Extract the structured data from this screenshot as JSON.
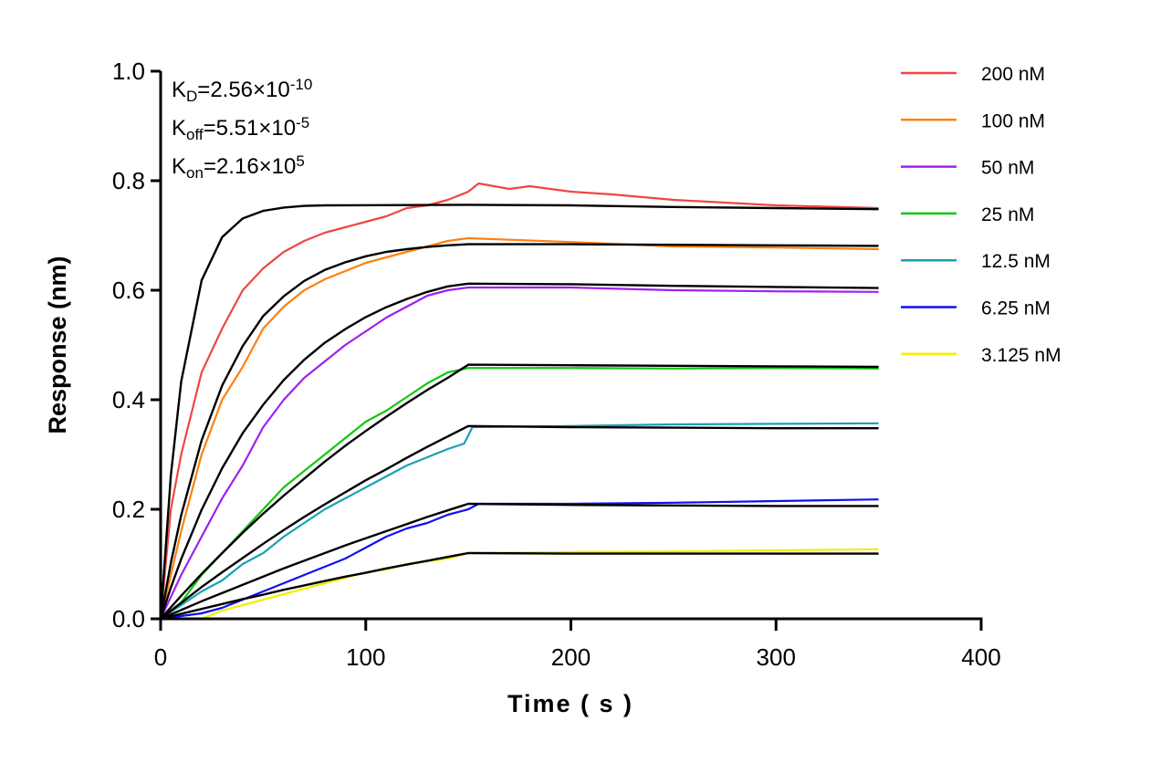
{
  "chart_data": {
    "type": "line",
    "title": "",
    "xlabel": "Time ( s )",
    "ylabel": "Response (nm)",
    "xlim": [
      0,
      400
    ],
    "ylim": [
      0,
      1.0
    ],
    "xticks": [
      0,
      100,
      200,
      300,
      400
    ],
    "yticks": [
      0.0,
      0.2,
      0.4,
      0.6,
      0.8,
      1.0
    ],
    "xtick_labels": [
      "0",
      "100",
      "200",
      "300",
      "400"
    ],
    "ytick_labels": [
      "0.0",
      "0.2",
      "0.4",
      "0.6",
      "0.8",
      "1.0"
    ],
    "grid": false,
    "legend_position": "top-right",
    "fit_color": "#000000",
    "annotations": [
      {
        "sym": "K",
        "sub": "D",
        "text": "=2.56×10",
        "sup": "-10"
      },
      {
        "sym": "K",
        "sub": "off",
        "text": "=5.51×10",
        "sup": "-5"
      },
      {
        "sym": "K",
        "sub": "on",
        "text": "=2.16×10",
        "sup": "5"
      }
    ],
    "series": [
      {
        "name": "200 nM",
        "color": "#f04545",
        "data": [
          [
            0,
            0
          ],
          [
            5,
            0.2
          ],
          [
            10,
            0.3
          ],
          [
            20,
            0.45
          ],
          [
            30,
            0.53
          ],
          [
            40,
            0.6
          ],
          [
            50,
            0.64
          ],
          [
            60,
            0.67
          ],
          [
            70,
            0.69
          ],
          [
            80,
            0.705
          ],
          [
            90,
            0.715
          ],
          [
            100,
            0.725
          ],
          [
            110,
            0.735
          ],
          [
            120,
            0.75
          ],
          [
            130,
            0.755
          ],
          [
            140,
            0.765
          ],
          [
            150,
            0.78
          ],
          [
            155,
            0.795
          ],
          [
            170,
            0.785
          ],
          [
            180,
            0.79
          ],
          [
            200,
            0.78
          ],
          [
            220,
            0.775
          ],
          [
            250,
            0.765
          ],
          [
            300,
            0.755
          ],
          [
            350,
            0.75
          ]
        ],
        "fit": [
          [
            0,
            0
          ],
          [
            5,
            0.262
          ],
          [
            10,
            0.433
          ],
          [
            20,
            0.618
          ],
          [
            30,
            0.697
          ],
          [
            40,
            0.731
          ],
          [
            50,
            0.745
          ],
          [
            60,
            0.751
          ],
          [
            70,
            0.754
          ],
          [
            80,
            0.755
          ],
          [
            150,
            0.756
          ],
          [
            200,
            0.755
          ],
          [
            250,
            0.752
          ],
          [
            300,
            0.75
          ],
          [
            350,
            0.748
          ]
        ]
      },
      {
        "name": "100 nM",
        "color": "#ff8010",
        "data": [
          [
            0,
            0
          ],
          [
            5,
            0.08
          ],
          [
            10,
            0.16
          ],
          [
            20,
            0.3
          ],
          [
            30,
            0.4
          ],
          [
            40,
            0.46
          ],
          [
            50,
            0.53
          ],
          [
            60,
            0.57
          ],
          [
            70,
            0.6
          ],
          [
            80,
            0.62
          ],
          [
            90,
            0.635
          ],
          [
            100,
            0.65
          ],
          [
            110,
            0.66
          ],
          [
            120,
            0.67
          ],
          [
            130,
            0.68
          ],
          [
            140,
            0.69
          ],
          [
            150,
            0.695
          ],
          [
            200,
            0.688
          ],
          [
            250,
            0.68
          ],
          [
            300,
            0.678
          ],
          [
            350,
            0.675
          ]
        ],
        "fit": [
          [
            0,
            0
          ],
          [
            5,
            0.102
          ],
          [
            10,
            0.189
          ],
          [
            20,
            0.326
          ],
          [
            30,
            0.426
          ],
          [
            40,
            0.498
          ],
          [
            50,
            0.553
          ],
          [
            60,
            0.589
          ],
          [
            70,
            0.617
          ],
          [
            80,
            0.637
          ],
          [
            90,
            0.651
          ],
          [
            100,
            0.662
          ],
          [
            110,
            0.67
          ],
          [
            120,
            0.675
          ],
          [
            130,
            0.679
          ],
          [
            140,
            0.682
          ],
          [
            150,
            0.684
          ],
          [
            200,
            0.684
          ],
          [
            250,
            0.683
          ],
          [
            300,
            0.682
          ],
          [
            350,
            0.681
          ]
        ]
      },
      {
        "name": "50 nM",
        "color": "#a020f0",
        "data": [
          [
            0,
            0
          ],
          [
            10,
            0.08
          ],
          [
            20,
            0.15
          ],
          [
            30,
            0.22
          ],
          [
            40,
            0.28
          ],
          [
            50,
            0.35
          ],
          [
            60,
            0.4
          ],
          [
            70,
            0.44
          ],
          [
            80,
            0.47
          ],
          [
            90,
            0.5
          ],
          [
            100,
            0.525
          ],
          [
            110,
            0.55
          ],
          [
            120,
            0.57
          ],
          [
            130,
            0.59
          ],
          [
            140,
            0.6
          ],
          [
            150,
            0.605
          ],
          [
            200,
            0.605
          ],
          [
            250,
            0.6
          ],
          [
            300,
            0.598
          ],
          [
            350,
            0.597
          ]
        ],
        "fit": [
          [
            0,
            0
          ],
          [
            5,
            0.057
          ],
          [
            10,
            0.109
          ],
          [
            20,
            0.199
          ],
          [
            30,
            0.275
          ],
          [
            40,
            0.339
          ],
          [
            50,
            0.391
          ],
          [
            60,
            0.436
          ],
          [
            70,
            0.473
          ],
          [
            80,
            0.504
          ],
          [
            90,
            0.529
          ],
          [
            100,
            0.551
          ],
          [
            110,
            0.569
          ],
          [
            120,
            0.584
          ],
          [
            130,
            0.597
          ],
          [
            140,
            0.607
          ],
          [
            150,
            0.612
          ],
          [
            200,
            0.611
          ],
          [
            250,
            0.608
          ],
          [
            300,
            0.606
          ],
          [
            350,
            0.604
          ]
        ]
      },
      {
        "name": "25 nM",
        "color": "#10c810",
        "data": [
          [
            0,
            0
          ],
          [
            10,
            0.03
          ],
          [
            20,
            0.08
          ],
          [
            30,
            0.12
          ],
          [
            40,
            0.16
          ],
          [
            50,
            0.2
          ],
          [
            60,
            0.24
          ],
          [
            70,
            0.27
          ],
          [
            80,
            0.3
          ],
          [
            90,
            0.33
          ],
          [
            100,
            0.36
          ],
          [
            110,
            0.38
          ],
          [
            120,
            0.405
          ],
          [
            130,
            0.43
          ],
          [
            140,
            0.45
          ],
          [
            150,
            0.458
          ],
          [
            200,
            0.458
          ],
          [
            250,
            0.457
          ],
          [
            300,
            0.458
          ],
          [
            350,
            0.457
          ]
        ],
        "fit": [
          [
            0,
            0
          ],
          [
            5,
            0.021
          ],
          [
            10,
            0.042
          ],
          [
            20,
            0.082
          ],
          [
            30,
            0.12
          ],
          [
            40,
            0.157
          ],
          [
            50,
            0.192
          ],
          [
            60,
            0.225
          ],
          [
            70,
            0.256
          ],
          [
            80,
            0.287
          ],
          [
            90,
            0.316
          ],
          [
            100,
            0.343
          ],
          [
            110,
            0.369
          ],
          [
            120,
            0.394
          ],
          [
            130,
            0.418
          ],
          [
            140,
            0.44
          ],
          [
            150,
            0.464
          ],
          [
            200,
            0.463
          ],
          [
            250,
            0.462
          ],
          [
            300,
            0.461
          ],
          [
            350,
            0.46
          ]
        ]
      },
      {
        "name": "12.5 nM",
        "color": "#1aa0b4",
        "data": [
          [
            0,
            0
          ],
          [
            10,
            0.025
          ],
          [
            20,
            0.05
          ],
          [
            30,
            0.07
          ],
          [
            40,
            0.1
          ],
          [
            50,
            0.12
          ],
          [
            60,
            0.15
          ],
          [
            70,
            0.175
          ],
          [
            80,
            0.2
          ],
          [
            90,
            0.22
          ],
          [
            100,
            0.24
          ],
          [
            110,
            0.26
          ],
          [
            120,
            0.28
          ],
          [
            130,
            0.295
          ],
          [
            140,
            0.31
          ],
          [
            148,
            0.32
          ],
          [
            152,
            0.35
          ],
          [
            200,
            0.352
          ],
          [
            250,
            0.355
          ],
          [
            300,
            0.356
          ],
          [
            350,
            0.357
          ]
        ],
        "fit": [
          [
            0,
            0
          ],
          [
            10,
            0.029
          ],
          [
            20,
            0.058
          ],
          [
            30,
            0.085
          ],
          [
            40,
            0.111
          ],
          [
            50,
            0.137
          ],
          [
            60,
            0.162
          ],
          [
            70,
            0.186
          ],
          [
            80,
            0.209
          ],
          [
            90,
            0.231
          ],
          [
            100,
            0.253
          ],
          [
            110,
            0.273
          ],
          [
            120,
            0.294
          ],
          [
            130,
            0.314
          ],
          [
            140,
            0.333
          ],
          [
            150,
            0.352
          ],
          [
            200,
            0.35
          ],
          [
            250,
            0.349
          ],
          [
            300,
            0.348
          ],
          [
            350,
            0.348
          ]
        ]
      },
      {
        "name": "6.25 nM",
        "color": "#1010f0",
        "data": [
          [
            0,
            0
          ],
          [
            10,
            0.005
          ],
          [
            20,
            0.01
          ],
          [
            30,
            0.02
          ],
          [
            40,
            0.035
          ],
          [
            50,
            0.05
          ],
          [
            60,
            0.065
          ],
          [
            70,
            0.08
          ],
          [
            80,
            0.095
          ],
          [
            90,
            0.11
          ],
          [
            100,
            0.13
          ],
          [
            110,
            0.15
          ],
          [
            120,
            0.165
          ],
          [
            130,
            0.175
          ],
          [
            140,
            0.19
          ],
          [
            150,
            0.2
          ],
          [
            155,
            0.21
          ],
          [
            200,
            0.21
          ],
          [
            250,
            0.212
          ],
          [
            300,
            0.215
          ],
          [
            350,
            0.218
          ]
        ],
        "fit": [
          [
            0,
            0
          ],
          [
            10,
            0.016
          ],
          [
            20,
            0.032
          ],
          [
            30,
            0.047
          ],
          [
            40,
            0.062
          ],
          [
            50,
            0.077
          ],
          [
            60,
            0.092
          ],
          [
            70,
            0.106
          ],
          [
            80,
            0.12
          ],
          [
            90,
            0.134
          ],
          [
            100,
            0.147
          ],
          [
            110,
            0.16
          ],
          [
            120,
            0.173
          ],
          [
            130,
            0.186
          ],
          [
            140,
            0.198
          ],
          [
            150,
            0.21
          ],
          [
            200,
            0.208
          ],
          [
            250,
            0.207
          ],
          [
            300,
            0.206
          ],
          [
            350,
            0.206
          ]
        ]
      },
      {
        "name": "3.125 nM",
        "color": "#f0f000",
        "data": [
          [
            0,
            0
          ],
          [
            20,
            0.0
          ],
          [
            30,
            0.015
          ],
          [
            40,
            0.025
          ],
          [
            50,
            0.035
          ],
          [
            60,
            0.045
          ],
          [
            70,
            0.055
          ],
          [
            80,
            0.065
          ],
          [
            90,
            0.075
          ],
          [
            100,
            0.085
          ],
          [
            110,
            0.09
          ],
          [
            120,
            0.1
          ],
          [
            130,
            0.105
          ],
          [
            140,
            0.11
          ],
          [
            150,
            0.12
          ],
          [
            200,
            0.122
          ],
          [
            250,
            0.123
          ],
          [
            300,
            0.125
          ],
          [
            350,
            0.127
          ]
        ],
        "fit": [
          [
            0,
            0
          ],
          [
            10,
            0.009
          ],
          [
            20,
            0.018
          ],
          [
            30,
            0.027
          ],
          [
            40,
            0.036
          ],
          [
            50,
            0.044
          ],
          [
            60,
            0.053
          ],
          [
            70,
            0.061
          ],
          [
            80,
            0.069
          ],
          [
            90,
            0.077
          ],
          [
            100,
            0.084
          ],
          [
            110,
            0.092
          ],
          [
            120,
            0.099
          ],
          [
            130,
            0.106
          ],
          [
            140,
            0.113
          ],
          [
            150,
            0.12
          ],
          [
            200,
            0.119
          ],
          [
            250,
            0.119
          ],
          [
            300,
            0.119
          ],
          [
            350,
            0.119
          ]
        ]
      }
    ]
  }
}
